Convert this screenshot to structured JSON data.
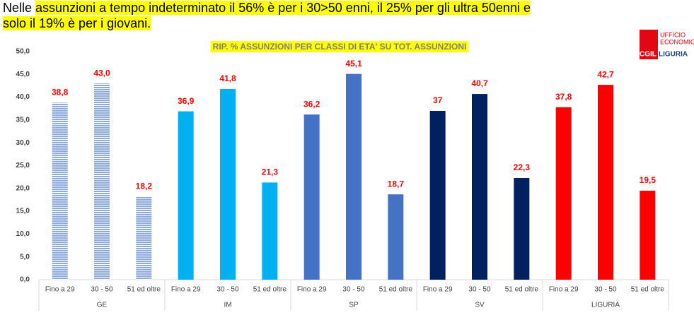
{
  "headline": {
    "lines": [
      [
        {
          "text": "Nelle ",
          "highlight": false
        },
        {
          "text": "assunzioni a tempo indeterminato il 56% è per i 30>50 enni, il 25% per gli ultra 50enni e",
          "highlight": true
        }
      ],
      [
        {
          "text": "solo il 19% è per i giovani.",
          "highlight": true
        }
      ]
    ]
  },
  "logo": {
    "line1": "UFFICIO",
    "line2": "ECONOMICO",
    "brand": "CGIL",
    "region": "LIGURIA"
  },
  "chart_data": {
    "type": "bar",
    "title": "RIP. % ASSUNZIONI PER CLASSI DI ETA' SU TOT. ASSUNZIONI",
    "ylim": [
      0,
      50
    ],
    "yticks": [
      {
        "value": 0,
        "label": "0,0"
      },
      {
        "value": 5,
        "label": "5,0"
      },
      {
        "value": 10,
        "label": "10,0"
      },
      {
        "value": 15,
        "label": "15,0"
      },
      {
        "value": 20,
        "label": "20,0"
      },
      {
        "value": 25,
        "label": "25,0"
      },
      {
        "value": 30,
        "label": "30,0"
      },
      {
        "value": 35,
        "label": "35,0"
      },
      {
        "value": 40,
        "label": "40,0"
      },
      {
        "value": 45,
        "label": "45,0"
      },
      {
        "value": 50,
        "label": "50,0"
      }
    ],
    "groups": [
      {
        "name": "GE",
        "color": "#8eaadb",
        "pattern": "stripes",
        "categories": [
          "Fino a 29",
          "30  - 50",
          "51 ed oltre"
        ],
        "values": [
          38.8,
          43.0,
          18.2
        ],
        "value_labels": [
          "38,8",
          "43,0",
          "18,2"
        ]
      },
      {
        "name": "IM",
        "color": "#00b0f0",
        "categories": [
          "Fino a 29",
          "30  - 50",
          "51 ed oltre"
        ],
        "values": [
          36.9,
          41.8,
          21.3
        ],
        "value_labels": [
          "36,9",
          "41,8",
          "21,3"
        ]
      },
      {
        "name": "SP",
        "color": "#4472c4",
        "categories": [
          "Fino a 29",
          "30  - 50",
          "51 ed oltre"
        ],
        "values": [
          36.2,
          45.1,
          18.7
        ],
        "value_labels": [
          "36,2",
          "45,1",
          "18,7"
        ]
      },
      {
        "name": "SV",
        "color": "#002060",
        "categories": [
          "Fino a 29",
          "30  - 50",
          "51 ed oltre"
        ],
        "values": [
          37,
          40.7,
          22.3
        ],
        "value_labels": [
          "37",
          "40,7",
          "22,3"
        ]
      },
      {
        "name": "LIGURIA",
        "color": "#ff0000",
        "categories": [
          "Fino a 29",
          "30  - 50",
          "51 ed oltre"
        ],
        "values": [
          37.8,
          42.7,
          19.5
        ],
        "value_labels": [
          "37,8",
          "42,7",
          "19,5"
        ]
      }
    ]
  }
}
